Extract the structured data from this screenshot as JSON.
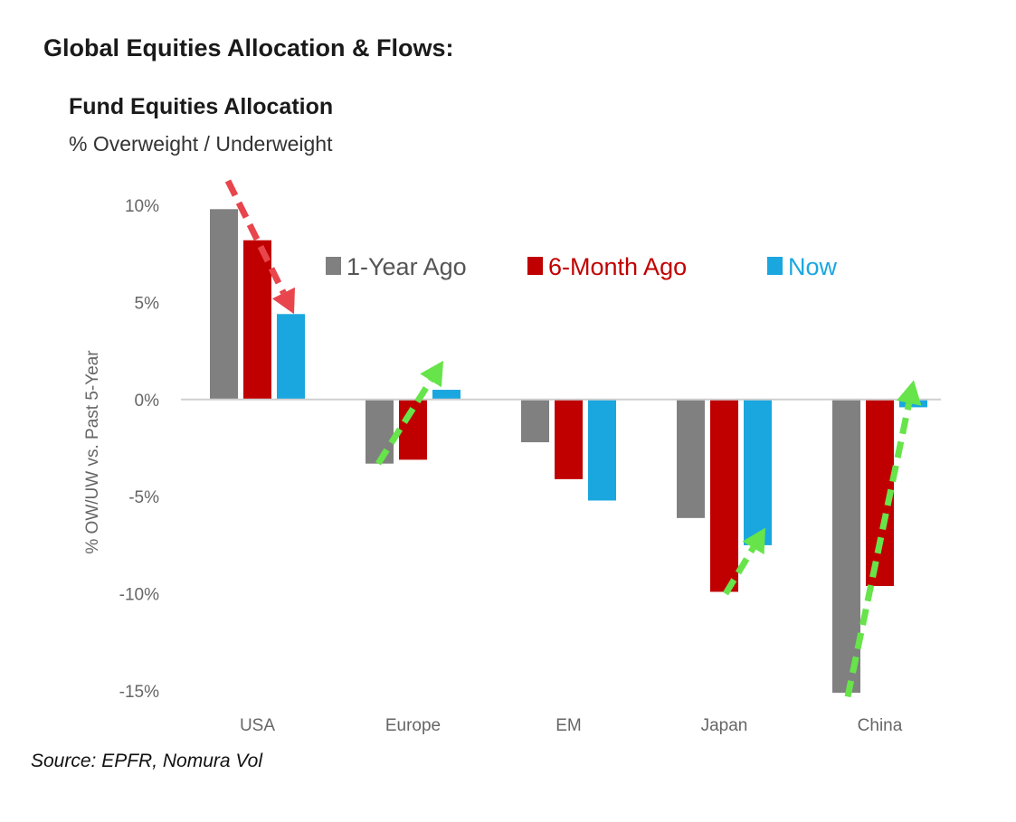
{
  "page": {
    "title": "Global Equities Allocation & Flows:",
    "source": "Source: EPFR, Nomura Vol"
  },
  "chart_data": {
    "type": "bar",
    "title": "Fund Equities Allocation",
    "subtitle": "% Overweight / Underweight",
    "ylabel": "% OW/UW vs. Past 5-Year",
    "xlabel": "",
    "categories": [
      "USA",
      "Europe",
      "EM",
      "Japan",
      "China"
    ],
    "series": [
      {
        "name": "1-Year Ago",
        "color": "#808080",
        "values": [
          9.8,
          -3.3,
          -2.2,
          -6.1,
          -15.1
        ]
      },
      {
        "name": "6-Month Ago",
        "color": "#c00000",
        "values": [
          8.2,
          -3.1,
          -4.1,
          -9.9,
          -9.6
        ]
      },
      {
        "name": "Now",
        "color": "#1aa7e0",
        "values": [
          4.4,
          0.5,
          -5.2,
          -7.5,
          -0.4
        ]
      }
    ],
    "ylim": [
      -15,
      10
    ],
    "yticks": [
      10,
      5,
      0,
      -5,
      -10,
      -15
    ],
    "ytick_labels": [
      "10%",
      "5%",
      "0%",
      "-5%",
      "-10%",
      "-15%"
    ],
    "legend_position": "top-center",
    "grid": false,
    "annotations": [
      {
        "type": "arrow",
        "color": "#e8454c",
        "style": "dashed",
        "category": "USA",
        "from": 9.8,
        "to": 4.4
      },
      {
        "type": "arrow",
        "color": "#66e44a",
        "style": "dashed",
        "category": "Europe",
        "from": -3.3,
        "to": 2.0
      },
      {
        "type": "arrow",
        "color": "#66e44a",
        "style": "dashed",
        "category": "Japan",
        "from": -10.0,
        "to": -6.6
      },
      {
        "type": "arrow",
        "color": "#66e44a",
        "style": "dashed",
        "category": "China",
        "from": -15.3,
        "to": 1.0
      }
    ]
  }
}
